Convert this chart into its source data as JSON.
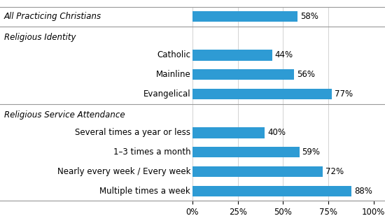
{
  "bar_color": "#2e9bd4",
  "background_color": "#ffffff",
  "xlabel_ticks": [
    0,
    25,
    50,
    75,
    100
  ],
  "xlabel_tick_labels": [
    "0%",
    "25%",
    "50%",
    "75%",
    "100%"
  ],
  "font_size_labels": 8.5,
  "font_size_headers": 8.5,
  "font_size_ticks": 8.5,
  "rows": [
    {
      "type": "bar",
      "label": "All Practicing Christians",
      "value": 58,
      "indent": false,
      "italic_label": true
    },
    {
      "type": "divider"
    },
    {
      "type": "header",
      "label": "Religious Identity",
      "value": null,
      "indent": false
    },
    {
      "type": "bar",
      "label": "Catholic",
      "value": 44,
      "indent": true,
      "italic_label": false
    },
    {
      "type": "bar",
      "label": "Mainline",
      "value": 56,
      "indent": true,
      "italic_label": false
    },
    {
      "type": "bar",
      "label": "Evangelical",
      "value": 77,
      "indent": true,
      "italic_label": false
    },
    {
      "type": "divider"
    },
    {
      "type": "header",
      "label": "Religious Service Attendance",
      "value": null,
      "indent": false
    },
    {
      "type": "bar",
      "label": "Several times a year or less",
      "value": 40,
      "indent": true,
      "italic_label": false
    },
    {
      "type": "bar",
      "label": "1–3 times a month",
      "value": 59,
      "indent": true,
      "italic_label": false
    },
    {
      "type": "bar",
      "label": "Nearly every week / Every week",
      "value": 72,
      "indent": true,
      "italic_label": false
    },
    {
      "type": "bar",
      "label": "Multiple times a week",
      "value": 88,
      "indent": true,
      "italic_label": false
    }
  ]
}
